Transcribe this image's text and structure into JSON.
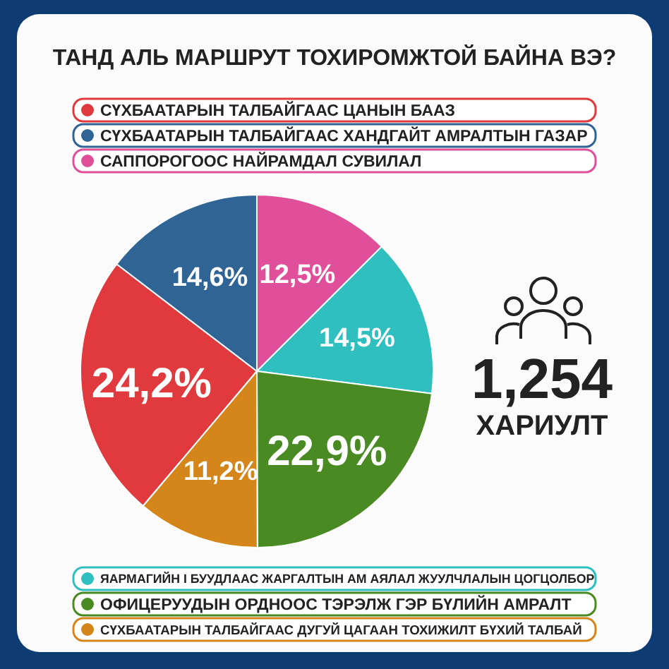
{
  "chart_data": {
    "type": "pie",
    "title": "ТАНД АЛЬ МАРШРУТ ТОХИРОМЖТОЙ БАЙНА ВЭ?",
    "categories": [
      "СҮХБААТАРЫН ТАЛБАЙГААС ЦАНЫН БААЗ",
      "СҮХБААТАРЫН ТАЛБАЙГААС ХАНДГАЙТ АМРАЛТЫН ГАЗАР",
      "САППОРОГООС НАЙРАМДАЛ СУВИЛАЛ",
      "ЯАРМАГИЙН I БУУДЛААС ЖАРГАЛТЫН АМ АЯЛАЛ ЖУУЛЧЛАЛЫН ЦОГЦОЛБОР",
      "ОФИЦЕРУУДЫН ОРДНООС ТЭРЭЛЖ ГЭР БҮЛИЙН АМРАЛТ",
      "СҮХБААТАРЫН ТАЛБАЙГААС ДУГУЙ ЦАГААН ТОХИЖИЛТ БҮХИЙ ТАЛБАЙ"
    ],
    "values": [
      24.2,
      14.6,
      12.5,
      14.5,
      22.9,
      11.2
    ],
    "value_labels": [
      "24,2%",
      "14,6%",
      "12,5%",
      "14,5%",
      "22,9%",
      "11,2%"
    ],
    "colors": [
      "#e03a3e",
      "#2f6494",
      "#e0509a",
      "#2fbfbf",
      "#4a8a22",
      "#d4861a"
    ],
    "annotations": [
      "1,254",
      "ХАРИУЛТ"
    ],
    "legend": "top"
  }
}
